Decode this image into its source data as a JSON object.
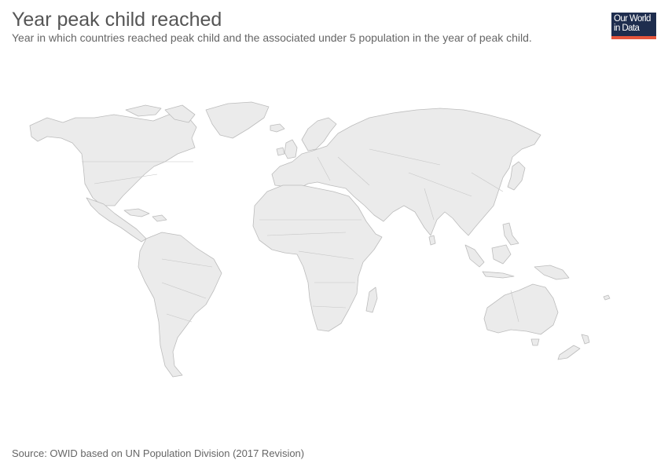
{
  "header": {
    "title": "Year peak child reached",
    "subtitle": "Year in which countries reached peak child and the associated under 5 population in the year of peak child."
  },
  "logo": {
    "line1": "Our World",
    "line2": "in Data",
    "background_color": "#1e2d4e",
    "accent_color": "#e5553c"
  },
  "map": {
    "land_color": "#ebebeb",
    "border_color": "#bcbcbc",
    "has_data": false
  },
  "footer": {
    "source": "Source: OWID based on UN Population Division (2017 Revision)"
  }
}
